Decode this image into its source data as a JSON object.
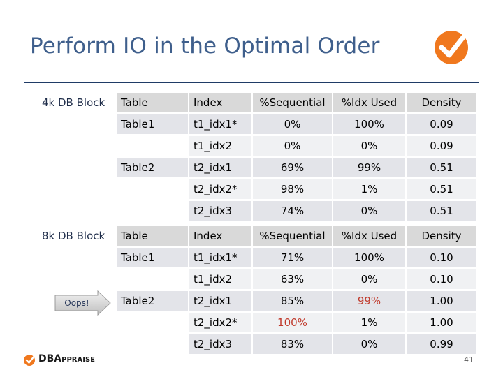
{
  "slide": {
    "title": "Perform IO in the Optimal Order",
    "page_number": "41"
  },
  "brand": {
    "name_main": "DBA",
    "name_small": "PPRAISE"
  },
  "oops_label": "Oops!",
  "tables": [
    {
      "label": "4k DB Block",
      "headers": [
        "Table",
        "Index",
        "%Sequential",
        "%Idx Used",
        "Density"
      ],
      "rows": [
        {
          "table": "Table1",
          "index": "t1_idx1*",
          "seq": "0%",
          "idx": "100%",
          "density": "0.09"
        },
        {
          "table": "",
          "index": "t1_idx2",
          "seq": "0%",
          "idx": "0%",
          "density": "0.09"
        },
        {
          "table": "Table2",
          "index": "t2_idx1",
          "seq": "69%",
          "idx": "99%",
          "density": "0.51"
        },
        {
          "table": "",
          "index": "t2_idx2*",
          "seq": "98%",
          "idx": "1%",
          "density": "0.51"
        },
        {
          "table": "",
          "index": "t2_idx3",
          "seq": "74%",
          "idx": "0%",
          "density": "0.51"
        }
      ]
    },
    {
      "label": "8k DB Block",
      "headers": [
        "Table",
        "Index",
        "%Sequential",
        "%Idx Used",
        "Density"
      ],
      "rows": [
        {
          "table": "Table1",
          "index": "t1_idx1*",
          "seq": "71%",
          "idx": "100%",
          "density": "0.10"
        },
        {
          "table": "",
          "index": "t1_idx2",
          "seq": "63%",
          "idx": "0%",
          "density": "0.10"
        },
        {
          "table": "Table2",
          "index": "t2_idx1",
          "seq": "85%",
          "idx": "99%",
          "density": "1.00"
        },
        {
          "table": "",
          "index": "t2_idx2*",
          "seq": "100%",
          "idx": "1%",
          "density": "1.00"
        },
        {
          "table": "",
          "index": "t2_idx3",
          "seq": "83%",
          "idx": "0%",
          "density": "0.99"
        }
      ]
    }
  ],
  "colors": {
    "title": "#3f5f8c",
    "rule": "#1f3b66",
    "logo_orange": "#f0781e",
    "highlight_red": "#c0392b"
  },
  "icons": [
    "checkmark-logo-icon",
    "oops-arrow-icon",
    "dbappraise-logo-icon"
  ]
}
